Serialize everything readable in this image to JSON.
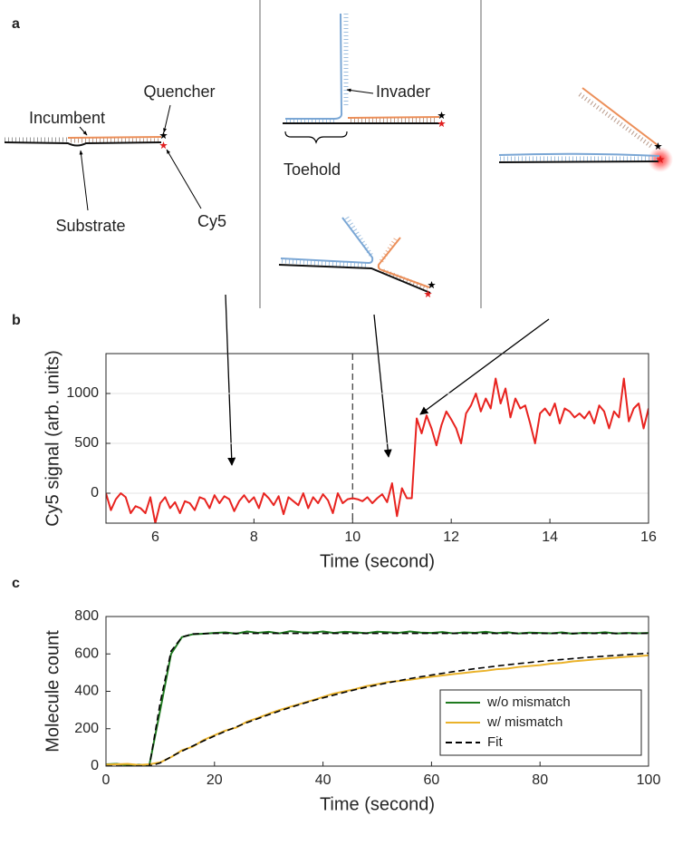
{
  "panel_a": {
    "label": "a",
    "annotations": {
      "incumbent": "Incumbent",
      "quencher": "Quencher",
      "substrate": "Substrate",
      "cy5": "Cy5",
      "invader": "Invader",
      "toehold": "Toehold"
    }
  },
  "chart_data": [
    {
      "type": "line",
      "panel_label": "b",
      "xlabel": "Time (second)",
      "ylabel": "Cy5 signal (arb. units)",
      "color": "#e8231f",
      "xlim": [
        5,
        16
      ],
      "xticks": [
        6,
        8,
        10,
        12,
        14,
        16
      ],
      "ylim": [
        -300,
        1400
      ],
      "yticks": [
        0,
        500,
        1000
      ],
      "grid": true,
      "vline": 10,
      "x": [
        5,
        5.1,
        5.2,
        5.3,
        5.4,
        5.5,
        5.6,
        5.7,
        5.8,
        5.9,
        6,
        6.1,
        6.2,
        6.3,
        6.4,
        6.5,
        6.6,
        6.7,
        6.8,
        6.9,
        7,
        7.1,
        7.2,
        7.3,
        7.4,
        7.5,
        7.6,
        7.7,
        7.8,
        7.9,
        8,
        8.1,
        8.2,
        8.3,
        8.4,
        8.5,
        8.6,
        8.7,
        8.8,
        8.9,
        9,
        9.1,
        9.2,
        9.3,
        9.4,
        9.5,
        9.6,
        9.7,
        9.8,
        9.9,
        10,
        10.1,
        10.2,
        10.3,
        10.4,
        10.5,
        10.6,
        10.7,
        10.8,
        10.9,
        11,
        11.1,
        11.2,
        11.3,
        11.4,
        11.5,
        11.6,
        11.7,
        11.8,
        11.9,
        12,
        12.1,
        12.2,
        12.3,
        12.4,
        12.5,
        12.6,
        12.7,
        12.8,
        12.9,
        13,
        13.1,
        13.2,
        13.3,
        13.4,
        13.5,
        13.6,
        13.7,
        13.8,
        13.9,
        14,
        14.1,
        14.2,
        14.3,
        14.4,
        14.5,
        14.6,
        14.7,
        14.8,
        14.9,
        15,
        15.1,
        15.2,
        15.3,
        15.4,
        15.5,
        15.6,
        15.7,
        15.8,
        15.9,
        16
      ],
      "values": [
        0,
        -170,
        -60,
        0,
        -40,
        -200,
        -130,
        -150,
        -200,
        -40,
        -300,
        -100,
        -40,
        -150,
        -90,
        -200,
        -80,
        -100,
        -170,
        -40,
        -60,
        -150,
        -20,
        -100,
        -30,
        -60,
        -180,
        -80,
        -20,
        -90,
        -40,
        -150,
        0,
        -50,
        -120,
        -30,
        -210,
        -40,
        -80,
        -120,
        0,
        -150,
        -40,
        -100,
        -10,
        -70,
        -200,
        0,
        -100,
        -60,
        -50,
        -60,
        -80,
        -40,
        -100,
        -50,
        -10,
        -90,
        100,
        -230,
        50,
        -50,
        -50,
        750,
        600,
        780,
        650,
        480,
        680,
        820,
        740,
        650,
        500,
        800,
        880,
        1000,
        820,
        950,
        850,
        1150,
        900,
        1050,
        760,
        950,
        850,
        880,
        700,
        500,
        800,
        850,
        780,
        900,
        700,
        850,
        820,
        760,
        800,
        750,
        820,
        700,
        880,
        820,
        650,
        820,
        760,
        1150,
        720,
        850,
        900,
        650,
        850
      ]
    },
    {
      "type": "line",
      "panel_label": "c",
      "xlabel": "Time (second)",
      "ylabel": "Molecule count",
      "xlim": [
        0,
        100
      ],
      "xticks": [
        0,
        20,
        40,
        60,
        80,
        100
      ],
      "ylim": [
        0,
        800
      ],
      "yticks": [
        0,
        200,
        400,
        600,
        800
      ],
      "grid": false,
      "legend": "lower right",
      "x": [
        0,
        2,
        4,
        6,
        8,
        10,
        12,
        14,
        16,
        18,
        20,
        22,
        24,
        26,
        28,
        30,
        32,
        34,
        36,
        38,
        40,
        42,
        44,
        46,
        48,
        50,
        52,
        54,
        56,
        58,
        60,
        62,
        64,
        66,
        68,
        70,
        72,
        74,
        76,
        78,
        80,
        82,
        84,
        86,
        88,
        90,
        92,
        94,
        96,
        98,
        100
      ],
      "series": [
        {
          "name": "w/o mismatch",
          "color": "#1f7a1f",
          "linestyle": "solid",
          "values": [
            10,
            12,
            5,
            8,
            6,
            300,
            600,
            690,
            705,
            708,
            712,
            715,
            708,
            720,
            713,
            718,
            710,
            722,
            716,
            714,
            720,
            712,
            718,
            715,
            711,
            719,
            716,
            713,
            720,
            714,
            712,
            717,
            710,
            715,
            713,
            718,
            711,
            716,
            709,
            714,
            712,
            710,
            715,
            708,
            713,
            711,
            716,
            709,
            712,
            710,
            712
          ]
        },
        {
          "name": "w/ mismatch",
          "color": "#eab22a",
          "linestyle": "solid",
          "values": [
            8,
            10,
            12,
            6,
            10,
            20,
            48,
            85,
            104,
            140,
            165,
            190,
            206,
            238,
            258,
            280,
            300,
            318,
            335,
            352,
            370,
            388,
            400,
            412,
            428,
            438,
            450,
            455,
            462,
            470,
            478,
            485,
            492,
            498,
            505,
            510,
            518,
            522,
            530,
            535,
            540,
            548,
            552,
            560,
            565,
            570,
            575,
            580,
            585,
            588,
            592
          ]
        },
        {
          "name": "Fit",
          "color": "#000000",
          "linestyle": "dashed",
          "values": [
            0,
            0,
            0,
            0,
            0,
            340,
            615,
            690,
            707,
            709,
            710,
            710,
            710,
            710,
            710,
            710,
            710,
            710,
            710,
            710,
            710,
            710,
            710,
            710,
            710,
            710,
            710,
            710,
            710,
            710,
            710,
            710,
            710,
            710,
            710,
            710,
            710,
            710,
            710,
            710,
            710,
            710,
            710,
            710,
            710,
            710,
            710,
            710,
            710,
            710,
            710
          ]
        },
        {
          "color": "#000000",
          "linestyle": "dashed",
          "values": [
            0,
            0,
            0,
            0,
            0,
            17,
            50,
            80,
            108,
            135,
            161,
            186,
            210,
            233,
            254,
            275,
            295,
            314,
            332,
            349,
            365,
            380,
            395,
            409,
            422,
            434,
            446,
            457,
            468,
            478,
            487,
            496,
            505,
            513,
            521,
            528,
            535,
            542,
            548,
            554,
            560,
            565,
            570,
            575,
            580,
            584,
            588,
            592,
            596,
            600,
            604
          ]
        }
      ]
    }
  ]
}
